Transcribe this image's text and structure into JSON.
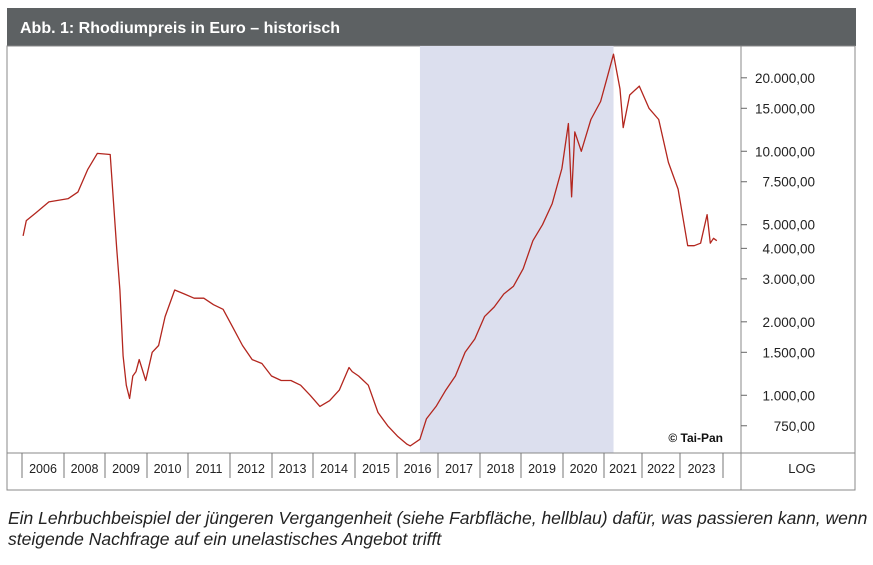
{
  "header": {
    "title": "Abb. 1: Rhodiumpreis in Euro – historisch",
    "background": "#5d6163"
  },
  "caption": "Ein Lehrbuchbeispiel der jüngeren Vergangenheit (siehe Farbfläche, hellblau) dafür, was passieren kann, wenn steigende Nachfrage auf ein unelastisches Angebot trifft",
  "chart_data": {
    "type": "line",
    "title": "Abb. 1: Rhodiumpreis in Euro – historisch",
    "y_scale": "log",
    "y_scale_label": "LOG",
    "y_ticks": [
      750,
      1000,
      1500,
      2000,
      3000,
      4000,
      5000,
      7500,
      10000,
      15000,
      20000
    ],
    "y_tick_labels": [
      "750,00",
      "1.000,00",
      "1.500,00",
      "2.000,00",
      "3.000,00",
      "4.000,00",
      "5.000,00",
      "7.500,00",
      "10.000,00",
      "15.000,00",
      "20.000,00"
    ],
    "x_tick_labels": [
      "2006",
      "2008",
      "2009",
      "2010",
      "2011",
      "2012",
      "2013",
      "2014",
      "2015",
      "2016",
      "2017",
      "2018",
      "2019",
      "2020",
      "2021",
      "2022",
      "2023"
    ],
    "ylim": [
      580,
      27000
    ],
    "grid": false,
    "highlight": {
      "from": "2016-04",
      "to": "2021-04",
      "color": "#dcdfee"
    },
    "annotation": "© Tai-Pan",
    "series": [
      {
        "color": "#b3261e",
        "x": [
          "2006-01",
          "2006-02",
          "2006-05",
          "2006-09",
          "2007-03",
          "2007-06",
          "2007-09",
          "2007-12",
          "2008-04",
          "2008-06",
          "2008-07",
          "2008-08",
          "2008-09",
          "2008-10",
          "2008-11",
          "2008-12",
          "2009-01",
          "2009-03",
          "2009-05",
          "2009-07",
          "2009-09",
          "2009-12",
          "2010-03",
          "2010-06",
          "2010-09",
          "2010-12",
          "2011-03",
          "2011-06",
          "2011-09",
          "2011-12",
          "2012-03",
          "2012-06",
          "2012-09",
          "2012-12",
          "2013-03",
          "2013-06",
          "2013-09",
          "2013-12",
          "2014-03",
          "2014-06",
          "2014-07",
          "2014-09",
          "2014-12",
          "2015-03",
          "2015-06",
          "2015-09",
          "2015-12",
          "2016-01",
          "2016-04",
          "2016-06",
          "2016-09",
          "2016-12",
          "2017-03",
          "2017-06",
          "2017-09",
          "2017-12",
          "2018-03",
          "2018-06",
          "2018-09",
          "2018-12",
          "2019-03",
          "2019-06",
          "2019-09",
          "2019-12",
          "2020-02",
          "2020-03",
          "2020-04",
          "2020-06",
          "2020-09",
          "2020-12",
          "2021-02",
          "2021-04",
          "2021-06",
          "2021-07",
          "2021-09",
          "2021-12",
          "2022-03",
          "2022-06",
          "2022-09",
          "2022-12",
          "2023-03",
          "2023-05",
          "2023-07",
          "2023-09",
          "2023-10",
          "2023-11",
          "2023-12"
        ],
        "values": [
          4500,
          5200,
          5600,
          6200,
          6400,
          6800,
          8400,
          9800,
          9700,
          4000,
          2700,
          1450,
          1100,
          970,
          1200,
          1250,
          1400,
          1150,
          1500,
          1600,
          2100,
          2700,
          2600,
          2500,
          2500,
          2350,
          2250,
          1900,
          1600,
          1400,
          1350,
          1200,
          1150,
          1150,
          1100,
          1000,
          900,
          950,
          1050,
          1300,
          1250,
          1200,
          1100,
          850,
          750,
          680,
          630,
          620,
          660,
          800,
          900,
          1050,
          1200,
          1500,
          1700,
          2100,
          2300,
          2600,
          2800,
          3300,
          4300,
          5000,
          6100,
          8500,
          13000,
          6500,
          12000,
          10000,
          13500,
          16000,
          20000,
          25000,
          18000,
          12500,
          17000,
          18500,
          15000,
          13500,
          9000,
          7000,
          4100,
          4100,
          4200,
          5500,
          4200,
          4400,
          4300
        ]
      }
    ]
  }
}
